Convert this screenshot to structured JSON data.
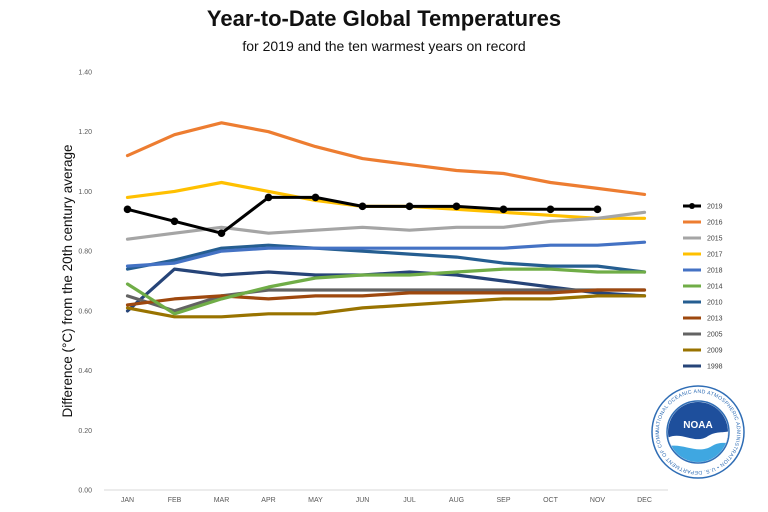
{
  "title": "Year-to-Date Global Temperatures",
  "subtitle": "for 2019 and the ten warmest years on record",
  "logo_text": "NOAA",
  "logo_ring_text": "NATIONAL OCEANIC AND ATMOSPHERIC ADMINISTRATION • U.S. DEPARTMENT OF COMMERCE •",
  "chart_data": {
    "type": "line",
    "title": "Year-to-Date Global Temperatures",
    "subtitle": "for 2019 and the ten warmest years on record",
    "ylabel": "Difference (°C) from the 20th century average",
    "xlabel": "",
    "categories": [
      "JAN",
      "FEB",
      "MAR",
      "APR",
      "MAY",
      "JUN",
      "JUL",
      "AUG",
      "SEP",
      "OCT",
      "NOV",
      "DEC"
    ],
    "ylim": [
      0,
      1.4
    ],
    "yticks": [
      "0.00",
      "0.20",
      "0.40",
      "0.60",
      "0.80",
      "1.00",
      "1.20",
      "1.40"
    ],
    "grid": false,
    "legend_position": "right",
    "series": [
      {
        "name": "2019",
        "color": "#000000",
        "markers": true,
        "values": [
          0.94,
          0.9,
          0.86,
          0.98,
          0.98,
          0.95,
          0.95,
          0.95,
          0.94,
          0.94,
          0.94,
          null
        ]
      },
      {
        "name": "2016",
        "color": "#ED7D31",
        "values": [
          1.12,
          1.19,
          1.23,
          1.2,
          1.15,
          1.11,
          1.09,
          1.07,
          1.06,
          1.03,
          1.01,
          0.99
        ]
      },
      {
        "name": "2015",
        "color": "#A5A5A5",
        "values": [
          0.84,
          0.86,
          0.88,
          0.86,
          0.87,
          0.88,
          0.87,
          0.88,
          0.88,
          0.9,
          0.91,
          0.93
        ]
      },
      {
        "name": "2017",
        "color": "#FFC000",
        "values": [
          0.98,
          1.0,
          1.03,
          1.0,
          0.97,
          0.95,
          0.95,
          0.94,
          0.93,
          0.92,
          0.91,
          0.91
        ]
      },
      {
        "name": "2018",
        "color": "#4472C4",
        "values": [
          0.75,
          0.76,
          0.8,
          0.81,
          0.81,
          0.81,
          0.81,
          0.81,
          0.81,
          0.82,
          0.82,
          0.83
        ]
      },
      {
        "name": "2014",
        "color": "#70AD47",
        "values": [
          0.69,
          0.59,
          0.64,
          0.68,
          0.71,
          0.72,
          0.72,
          0.73,
          0.74,
          0.74,
          0.73,
          0.73
        ]
      },
      {
        "name": "2010",
        "color": "#255E91",
        "values": [
          0.74,
          0.77,
          0.81,
          0.82,
          0.81,
          0.8,
          0.79,
          0.78,
          0.76,
          0.75,
          0.75,
          0.73
        ]
      },
      {
        "name": "2013",
        "color": "#9E480E",
        "values": [
          0.62,
          0.64,
          0.65,
          0.64,
          0.65,
          0.65,
          0.66,
          0.66,
          0.66,
          0.66,
          0.67,
          0.67
        ]
      },
      {
        "name": "2005",
        "color": "#636363",
        "values": [
          0.65,
          0.6,
          0.65,
          0.67,
          0.67,
          0.67,
          0.67,
          0.67,
          0.67,
          0.67,
          0.67,
          0.67
        ]
      },
      {
        "name": "2009",
        "color": "#997300",
        "values": [
          0.61,
          0.58,
          0.58,
          0.59,
          0.59,
          0.61,
          0.62,
          0.63,
          0.64,
          0.64,
          0.65,
          0.65
        ]
      },
      {
        "name": "1998",
        "color": "#264478",
        "values": [
          0.6,
          0.74,
          0.72,
          0.73,
          0.72,
          0.72,
          0.73,
          0.72,
          0.7,
          0.68,
          0.66,
          0.65
        ]
      }
    ]
  }
}
